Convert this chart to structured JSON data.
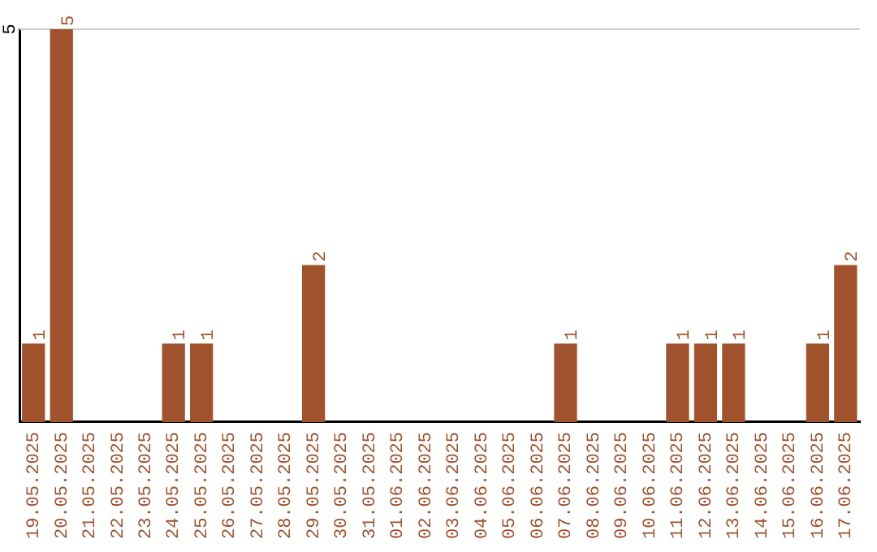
{
  "chart_data": {
    "type": "bar",
    "categories": [
      "19.05.2025",
      "20.05.2025",
      "21.05.2025",
      "22.05.2025",
      "23.05.2025",
      "24.05.2025",
      "25.05.2025",
      "26.05.2025",
      "27.05.2025",
      "28.05.2025",
      "29.05.2025",
      "30.05.2025",
      "31.05.2025",
      "01.06.2025",
      "02.06.2025",
      "03.06.2025",
      "04.06.2025",
      "05.06.2025",
      "06.06.2025",
      "07.06.2025",
      "08.06.2025",
      "09.06.2025",
      "10.06.2025",
      "11.06.2025",
      "12.06.2025",
      "13.06.2025",
      "14.06.2025",
      "15.06.2025",
      "16.06.2025",
      "17.06.2025"
    ],
    "values": [
      1,
      5,
      0,
      0,
      0,
      1,
      1,
      0,
      0,
      0,
      2,
      0,
      0,
      0,
      0,
      0,
      0,
      0,
      0,
      1,
      0,
      0,
      0,
      1,
      1,
      1,
      0,
      0,
      1,
      2
    ],
    "value_labels": [
      "1",
      "5",
      null,
      null,
      null,
      "1",
      "1",
      null,
      null,
      null,
      "2",
      null,
      null,
      null,
      null,
      null,
      null,
      null,
      null,
      "1",
      null,
      null,
      null,
      "1",
      "1",
      "1",
      null,
      null,
      "1",
      "2"
    ],
    "color": "#a0522d",
    "ylim": [
      0,
      5
    ],
    "yticks": [
      5
    ],
    "ref_lines": [
      {
        "axis": "y",
        "value": 5,
        "color": "#cccccc"
      }
    ],
    "legend": false
  }
}
